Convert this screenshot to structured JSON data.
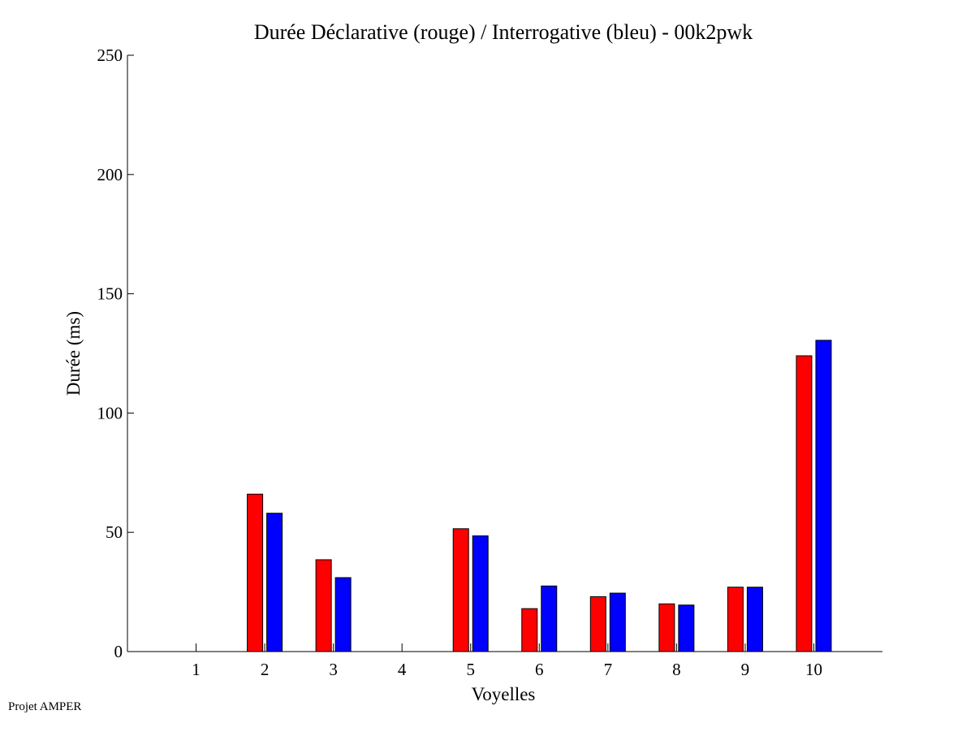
{
  "chart_data": {
    "type": "bar",
    "title": "Durée Déclarative (rouge) / Interrogative (bleu) - 00k2pwk",
    "xlabel": "Voyelles",
    "ylabel": "Durée (ms)",
    "categories": [
      "1",
      "2",
      "3",
      "4",
      "5",
      "6",
      "7",
      "8",
      "9",
      "10"
    ],
    "series": [
      {
        "color": "#ff0000",
        "values": [
          0,
          66,
          38.5,
          0,
          51.5,
          18,
          23,
          20,
          27,
          124
        ]
      },
      {
        "color": "#0000ff",
        "values": [
          0,
          58,
          31,
          0,
          48.5,
          27.5,
          24.5,
          19.5,
          27,
          130.5
        ]
      }
    ],
    "ylim": [
      0,
      250
    ],
    "yticks": [
      "0",
      "50",
      "100",
      "150",
      "200",
      "250"
    ],
    "grid": false,
    "legend": "none"
  },
  "footer": {
    "text": "Projet AMPER"
  }
}
